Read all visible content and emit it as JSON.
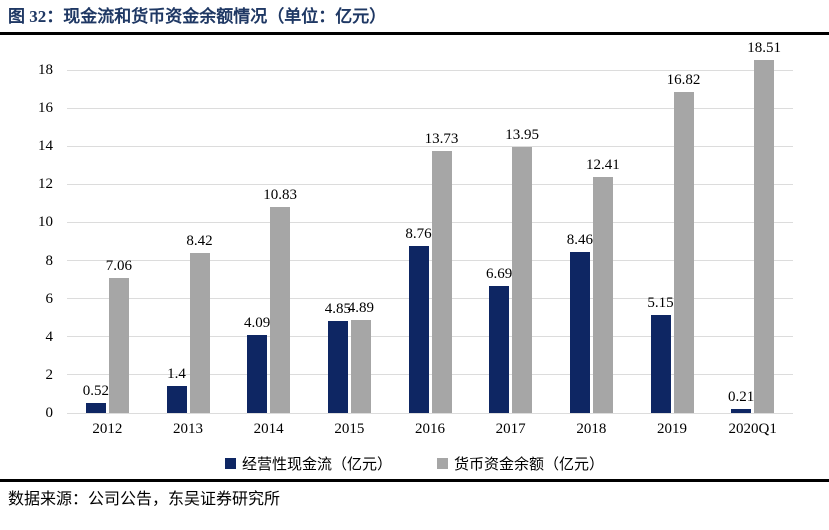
{
  "figure": {
    "title": "图 32：现金流和货币资金余额情况（单位：亿元）",
    "source": "数据来源：公司公告，东吴证券研究所"
  },
  "colors": {
    "title_text": "#1F3864",
    "series1": "#0E2663",
    "series2": "#A6A6A6",
    "gridline": "#DCDCDC",
    "rule": "#000000"
  },
  "chart_data": {
    "type": "bar",
    "categories": [
      "2012",
      "2013",
      "2014",
      "2015",
      "2016",
      "2017",
      "2018",
      "2019",
      "2020Q1"
    ],
    "series": [
      {
        "name": "经营性现金流（亿元）",
        "color_key": "series1",
        "values": [
          0.52,
          1.4,
          4.09,
          4.85,
          8.76,
          6.69,
          8.46,
          5.15,
          0.21
        ]
      },
      {
        "name": "货币资金余额（亿元）",
        "color_key": "series2",
        "values": [
          7.06,
          8.42,
          10.83,
          4.89,
          13.73,
          13.95,
          12.41,
          16.82,
          18.51
        ]
      }
    ],
    "title": "图 32：现金流和货币资金余额情况（单位：亿元）",
    "xlabel": "",
    "ylabel": "",
    "ylim": [
      0,
      18
    ],
    "ytick_step": 2,
    "grid": true,
    "legend_position": "bottom",
    "data_labels": true
  }
}
